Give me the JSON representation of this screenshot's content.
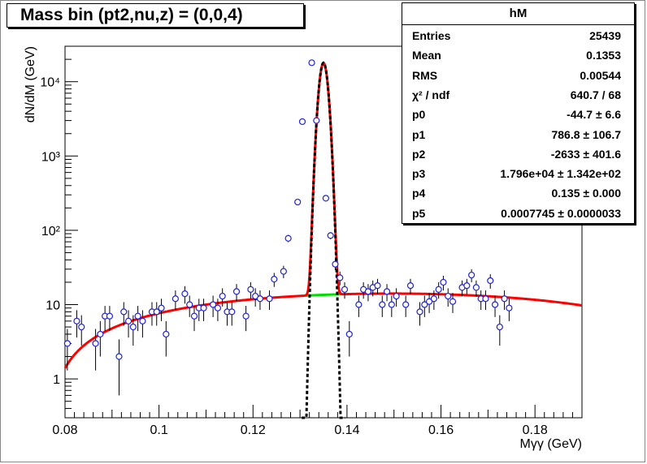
{
  "title": "Mass bin (pt2,nu,z) = (0,0,4)",
  "stats": {
    "name": "hM",
    "rows": [
      {
        "k": "Entries",
        "v": "25439"
      },
      {
        "k": "Mean",
        "v": "0.1353"
      },
      {
        "k": "RMS",
        "v": "0.00544"
      },
      {
        "k": "χ² / ndf",
        "v": "640.7 / 68"
      },
      {
        "k": "p0",
        "v": "-44.7 ± 6.6"
      },
      {
        "k": "p1",
        "v": "786.8 ± 106.7"
      },
      {
        "k": "p2",
        "v": "-2633 ± 401.6"
      },
      {
        "k": "p3",
        "v": "1.796e+04 ± 1.342e+02"
      },
      {
        "k": "p4",
        "v": "0.135 ± 0.000"
      },
      {
        "k": "p5",
        "v": "0.0007745 ± 0.0000033"
      }
    ]
  },
  "chart_data": {
    "type": "scatter",
    "xlabel": "Mγγ (GeV)",
    "ylabel": "dN/dM (GeV)",
    "xlim": [
      0.08,
      0.19
    ],
    "ylim": [
      0.3,
      30000
    ],
    "ylog": true,
    "x_ticks": [
      "0.08",
      "0.1",
      "0.12",
      "0.14",
      "0.16",
      "0.18"
    ],
    "y_ticks": [
      "1",
      "10",
      "10²",
      "10³",
      "10⁴"
    ],
    "colors": {
      "points": "#2222dd",
      "total_fit": "#ff0000",
      "background": "#00dd00",
      "signal": "#000000"
    },
    "fit": {
      "p0": -44.7,
      "p1": 786.8,
      "p2": -2633,
      "p3": 17960,
      "p4": 0.135,
      "p5": 0.0007745
    },
    "points": [
      {
        "x": 0.0805,
        "y": 3,
        "e": 1.7
      },
      {
        "x": 0.0825,
        "y": 6,
        "e": 2.4
      },
      {
        "x": 0.0835,
        "y": 5,
        "e": 2.2
      },
      {
        "x": 0.0865,
        "y": 3,
        "e": 1.7
      },
      {
        "x": 0.0875,
        "y": 4,
        "e": 2
      },
      {
        "x": 0.0885,
        "y": 7,
        "e": 2.6
      },
      {
        "x": 0.0895,
        "y": 7,
        "e": 2.6
      },
      {
        "x": 0.0915,
        "y": 2,
        "e": 1.4
      },
      {
        "x": 0.0925,
        "y": 8,
        "e": 2.8
      },
      {
        "x": 0.0935,
        "y": 6,
        "e": 2.4
      },
      {
        "x": 0.0945,
        "y": 5,
        "e": 2.2
      },
      {
        "x": 0.0955,
        "y": 7,
        "e": 2.6
      },
      {
        "x": 0.0965,
        "y": 6,
        "e": 2.4
      },
      {
        "x": 0.0985,
        "y": 8,
        "e": 2.8
      },
      {
        "x": 0.0995,
        "y": 8,
        "e": 2.8
      },
      {
        "x": 0.1005,
        "y": 9,
        "e": 3
      },
      {
        "x": 0.1015,
        "y": 4,
        "e": 2
      },
      {
        "x": 0.1035,
        "y": 12,
        "e": 3.5
      },
      {
        "x": 0.1055,
        "y": 14,
        "e": 3.7
      },
      {
        "x": 0.1065,
        "y": 10,
        "e": 3.2
      },
      {
        "x": 0.1075,
        "y": 7,
        "e": 2.6
      },
      {
        "x": 0.1085,
        "y": 9,
        "e": 3
      },
      {
        "x": 0.1095,
        "y": 9,
        "e": 3
      },
      {
        "x": 0.1115,
        "y": 10,
        "e": 3.2
      },
      {
        "x": 0.1125,
        "y": 9,
        "e": 3
      },
      {
        "x": 0.1135,
        "y": 13,
        "e": 3.6
      },
      {
        "x": 0.1145,
        "y": 8,
        "e": 2.8
      },
      {
        "x": 0.1155,
        "y": 8,
        "e": 2.8
      },
      {
        "x": 0.1165,
        "y": 15,
        "e": 3.9
      },
      {
        "x": 0.1185,
        "y": 7,
        "e": 2.6
      },
      {
        "x": 0.1195,
        "y": 16,
        "e": 4
      },
      {
        "x": 0.1205,
        "y": 13,
        "e": 3.6
      },
      {
        "x": 0.1215,
        "y": 12,
        "e": 3.5
      },
      {
        "x": 0.1235,
        "y": 12,
        "e": 3.5
      },
      {
        "x": 0.1245,
        "y": 22,
        "e": 4.7
      },
      {
        "x": 0.1265,
        "y": 28,
        "e": 5.3
      },
      {
        "x": 0.1275,
        "y": 78,
        "e": 8.8
      },
      {
        "x": 0.1295,
        "y": 240,
        "e": 15.5
      },
      {
        "x": 0.1305,
        "y": 2900,
        "e": 54
      },
      {
        "x": 0.1325,
        "y": 18000,
        "e": 134
      },
      {
        "x": 0.1335,
        "y": 3000,
        "e": 55
      },
      {
        "x": 0.1355,
        "y": 270,
        "e": 16.4
      },
      {
        "x": 0.1365,
        "y": 85,
        "e": 9.2
      },
      {
        "x": 0.1375,
        "y": 35,
        "e": 5.9
      },
      {
        "x": 0.1385,
        "y": 23,
        "e": 4.8
      },
      {
        "x": 0.1395,
        "y": 16,
        "e": 4
      },
      {
        "x": 0.1405,
        "y": 4,
        "e": 2
      },
      {
        "x": 0.1425,
        "y": 10,
        "e": 3.2
      },
      {
        "x": 0.1435,
        "y": 16,
        "e": 4
      },
      {
        "x": 0.1445,
        "y": 15,
        "e": 3.9
      },
      {
        "x": 0.1455,
        "y": 17,
        "e": 4.1
      },
      {
        "x": 0.1465,
        "y": 18,
        "e": 4.2
      },
      {
        "x": 0.1475,
        "y": 10,
        "e": 3.2
      },
      {
        "x": 0.1485,
        "y": 15,
        "e": 3.9
      },
      {
        "x": 0.1495,
        "y": 10,
        "e": 3.2
      },
      {
        "x": 0.1505,
        "y": 13,
        "e": 3.6
      },
      {
        "x": 0.1525,
        "y": 10,
        "e": 3.2
      },
      {
        "x": 0.1535,
        "y": 18,
        "e": 4.2
      },
      {
        "x": 0.1555,
        "y": 8,
        "e": 2.8
      },
      {
        "x": 0.1565,
        "y": 10,
        "e": 3.2
      },
      {
        "x": 0.1575,
        "y": 11,
        "e": 3.3
      },
      {
        "x": 0.1585,
        "y": 12,
        "e": 3.5
      },
      {
        "x": 0.1595,
        "y": 16,
        "e": 4
      },
      {
        "x": 0.1605,
        "y": 20,
        "e": 4.5
      },
      {
        "x": 0.1615,
        "y": 13,
        "e": 3.6
      },
      {
        "x": 0.1625,
        "y": 11,
        "e": 3.3
      },
      {
        "x": 0.1645,
        "y": 17,
        "e": 4.1
      },
      {
        "x": 0.1655,
        "y": 18,
        "e": 4.2
      },
      {
        "x": 0.1665,
        "y": 25,
        "e": 5
      },
      {
        "x": 0.1675,
        "y": 17,
        "e": 4.1
      },
      {
        "x": 0.1685,
        "y": 12,
        "e": 3.5
      },
      {
        "x": 0.1695,
        "y": 12,
        "e": 3.5
      },
      {
        "x": 0.1705,
        "y": 21,
        "e": 4.6
      },
      {
        "x": 0.1715,
        "y": 10,
        "e": 3.2
      },
      {
        "x": 0.1725,
        "y": 5,
        "e": 2.2
      },
      {
        "x": 0.1735,
        "y": 12,
        "e": 3.5
      },
      {
        "x": 0.1745,
        "y": 9,
        "e": 3
      }
    ]
  }
}
